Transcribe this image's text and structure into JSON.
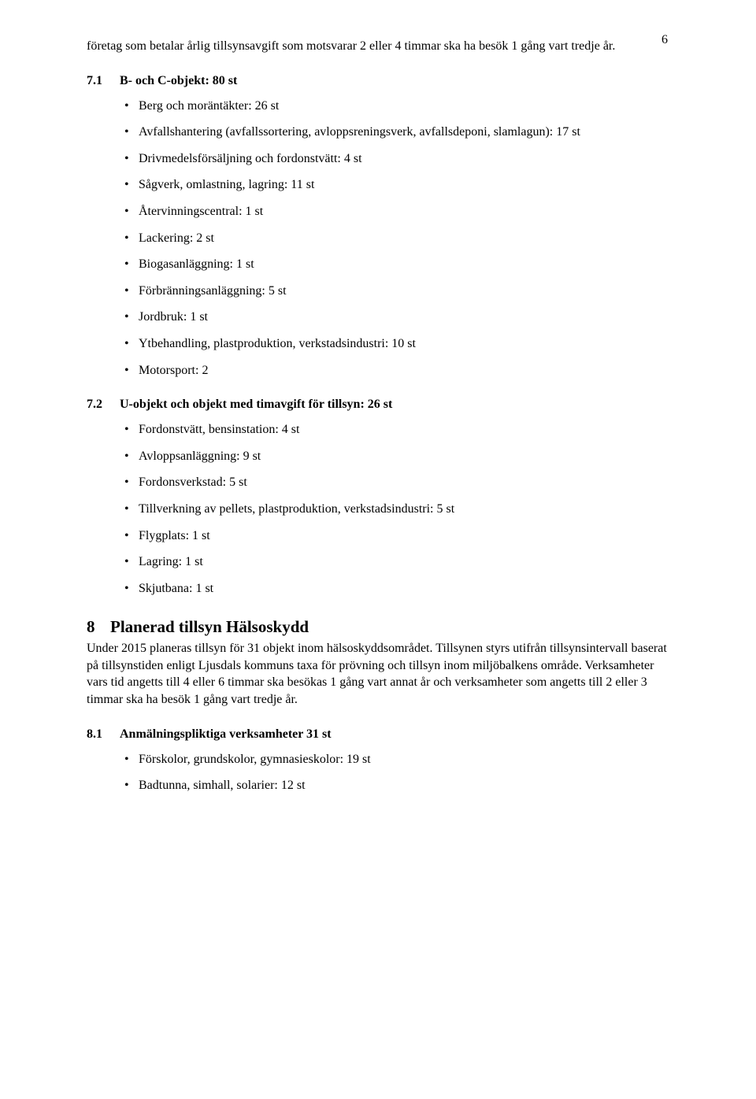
{
  "page_number": "6",
  "intro_paragraph": "företag som betalar årlig tillsynsavgift som motsvarar 2 eller 4 timmar ska ha besök 1 gång vart tredje år.",
  "section_7_1": {
    "number": "7.1",
    "title": "B- och C-objekt: 80 st",
    "items": [
      "Berg och moräntäkter: 26 st",
      "Avfallshantering (avfallssortering, avloppsreningsverk, avfallsdeponi, slamlagun): 17 st",
      "Drivmedelsförsäljning och fordonstvätt: 4 st",
      "Sågverk, omlastning, lagring: 11 st",
      "Återvinningscentral: 1 st",
      "Lackering: 2 st",
      "Biogasanläggning: 1 st",
      "Förbränningsanläggning: 5 st",
      "Jordbruk: 1 st",
      "Ytbehandling, plastproduktion, verkstadsindustri: 10 st",
      "Motorsport: 2"
    ]
  },
  "section_7_2": {
    "number": "7.2",
    "title": "U-objekt och objekt med timavgift för tillsyn: 26 st",
    "items": [
      "Fordonstvätt, bensinstation: 4 st",
      "Avloppsanläggning: 9 st",
      "Fordonsverkstad: 5 st",
      "Tillverkning av pellets, plastproduktion, verkstadsindustri: 5 st",
      "Flygplats: 1 st",
      "Lagring: 1 st",
      "Skjutbana: 1 st"
    ]
  },
  "section_8": {
    "number": "8",
    "title": "Planerad tillsyn Hälsoskydd",
    "body": "Under 2015 planeras tillsyn för 31 objekt inom hälsoskyddsområdet. Tillsynen styrs utifrån tillsynsintervall baserat på tillsynstiden enligt Ljusdals kommuns taxa för prövning och tillsyn inom miljöbalkens område. Verksamheter vars tid angetts till 4 eller 6 timmar ska besökas 1 gång vart annat år och verksamheter som angetts till 2 eller 3 timmar ska ha besök 1 gång vart tredje år."
  },
  "section_8_1": {
    "number": "8.1",
    "title": "Anmälningspliktiga verksamheter 31 st",
    "items": [
      "Förskolor, grundskolor, gymnasieskolor: 19 st",
      "Badtunna, simhall, solarier: 12 st"
    ]
  }
}
